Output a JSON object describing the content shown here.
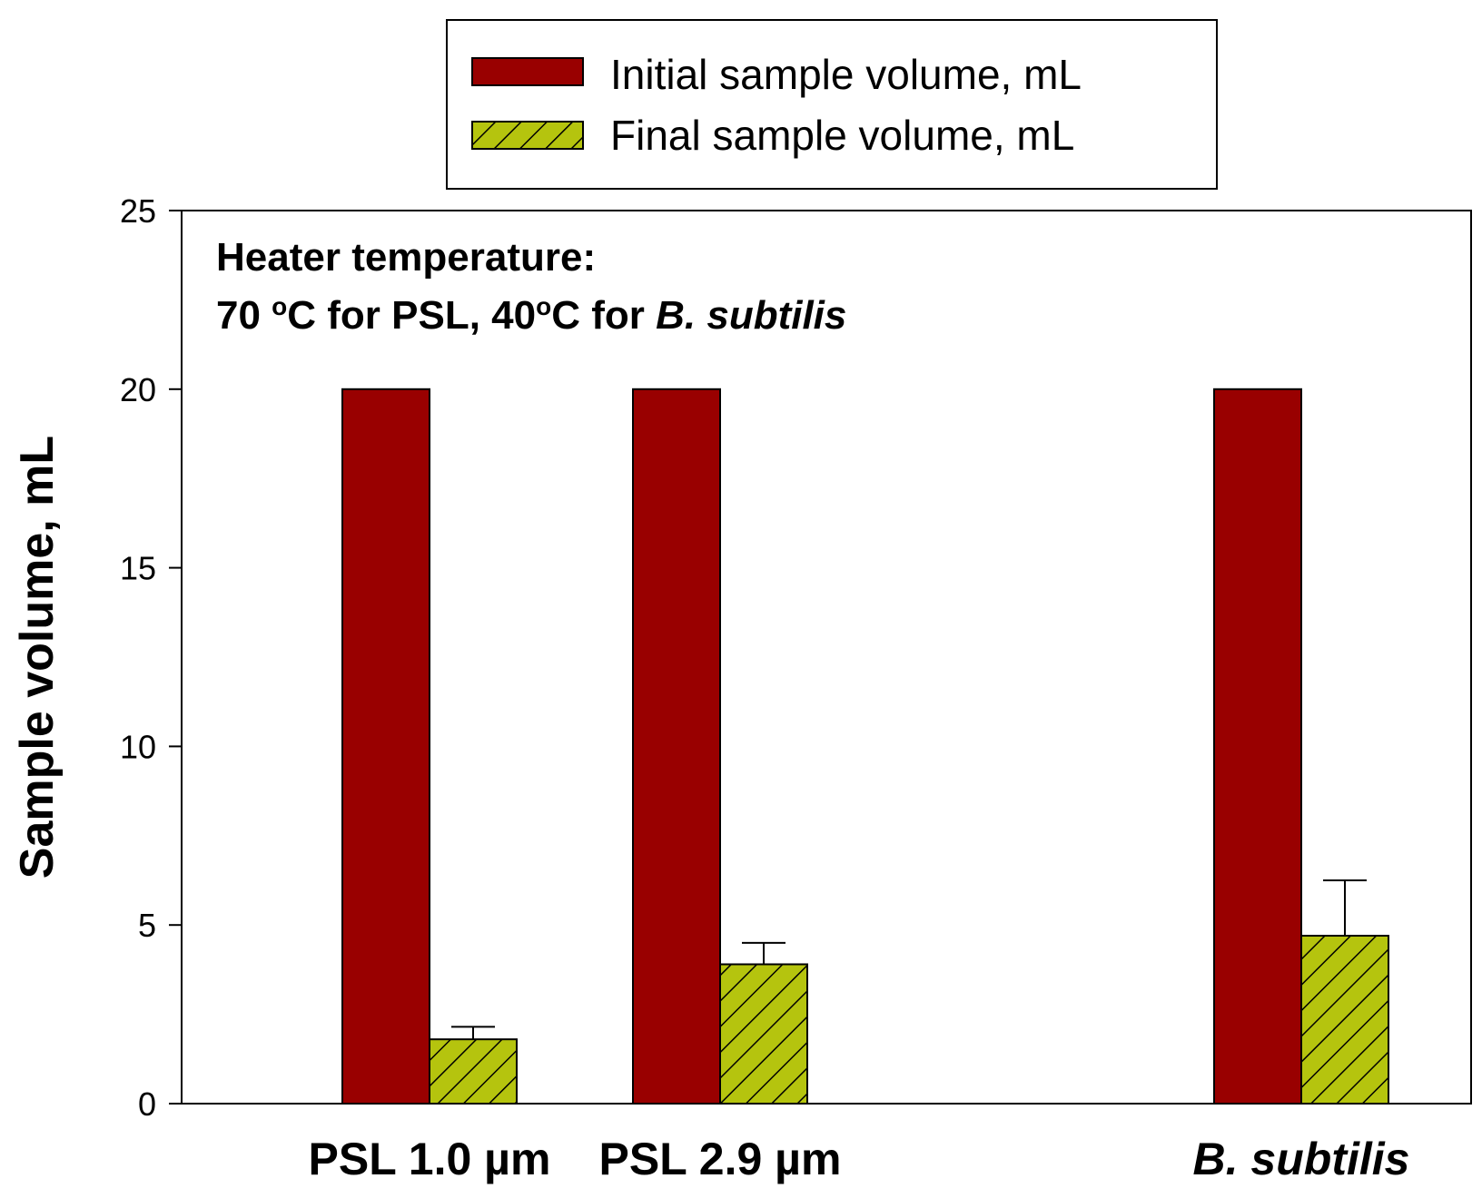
{
  "chart_data": {
    "type": "bar",
    "title": "",
    "xlabel": "",
    "ylabel": "Sample volume, mL",
    "ylim": [
      0,
      25
    ],
    "yticks": [
      "0",
      "5",
      "10",
      "15",
      "20",
      "25"
    ],
    "categories": [
      "PSL 1.0 µm",
      "PSL 2.9 µm",
      "B. subtilis"
    ],
    "category_positions": [
      0,
      1,
      3
    ],
    "series": [
      {
        "name": "Initial sample volume, mL",
        "values": [
          20,
          20,
          20
        ],
        "errors": [
          null,
          null,
          null
        ],
        "color": "#990000",
        "pattern": "solid"
      },
      {
        "name": "Final sample volume, mL",
        "values": [
          1.8,
          3.9,
          4.7
        ],
        "errors": [
          0.35,
          0.6,
          1.55
        ],
        "color": "#b5c40e",
        "pattern": "hatched"
      }
    ],
    "legend": {
      "position": "top-center"
    },
    "annotation": {
      "line1": "Heater temperature:",
      "line2_a": "70 ",
      "line2_sup1": "o",
      "line2_b": "C for PSL, 40",
      "line2_sup2": "o",
      "line2_c": "C for ",
      "line2_italic": "B. subtilis"
    },
    "grid": false
  }
}
